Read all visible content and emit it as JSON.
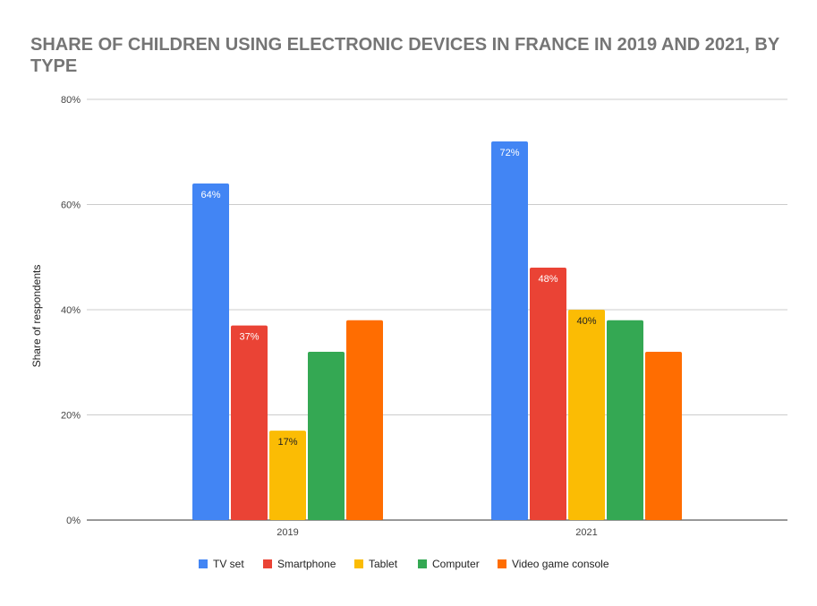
{
  "chart_data": {
    "type": "bar",
    "title": "SHARE OF CHILDREN USING ELECTRONIC DEVICES IN FRANCE IN 2019 AND 2021, BY TYPE",
    "title_lines": [
      "SHARE OF CHILDREN USING ELECTRONIC DEVICES IN FRANCE IN 2019 AND 2021, BY",
      "TYPE"
    ],
    "xlabel": "",
    "ylabel": "Share of respondents",
    "ylim": [
      0,
      80
    ],
    "yticks": [
      0,
      20,
      40,
      60,
      80
    ],
    "ytick_labels": [
      "0%",
      "20%",
      "40%",
      "60%",
      "80%"
    ],
    "grid": true,
    "legend_position": "bottom",
    "categories": [
      "2019",
      "2021"
    ],
    "series": [
      {
        "name": "TV set",
        "color": "#4285f4",
        "values": [
          64,
          72
        ],
        "labels": [
          "64%",
          "72%"
        ],
        "label_color": "#ffffff"
      },
      {
        "name": "Smartphone",
        "color": "#ea4335",
        "values": [
          37,
          48
        ],
        "labels": [
          "37%",
          "48%"
        ],
        "label_color": "#ffffff"
      },
      {
        "name": "Tablet",
        "color": "#fbbc04",
        "values": [
          17,
          40
        ],
        "labels": [
          "17%",
          "40%"
        ],
        "label_color": "#222222"
      },
      {
        "name": "Computer",
        "color": "#34a853",
        "values": [
          32,
          38
        ],
        "labels": [
          "",
          ""
        ],
        "label_color": "#ffffff"
      },
      {
        "name": "Video game console",
        "color": "#ff6d01",
        "values": [
          38,
          32
        ],
        "labels": [
          "",
          ""
        ],
        "label_color": "#ffffff"
      }
    ]
  }
}
